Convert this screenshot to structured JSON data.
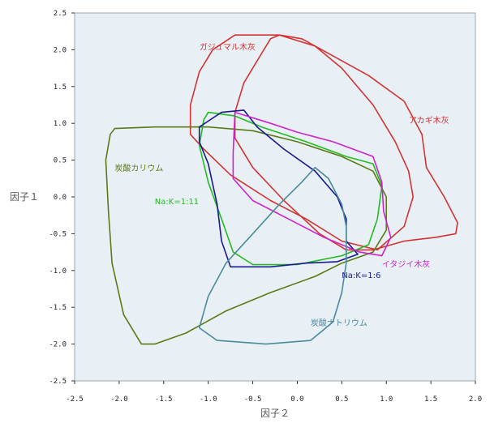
{
  "chart_data": {
    "type": "line",
    "xlabel": "因子２",
    "ylabel": "因子１",
    "xlim": [
      -2.5,
      2.0
    ],
    "ylim": [
      -2.5,
      2.5
    ],
    "x_ticks": [
      "-2.5",
      "-2.0",
      "-1.5",
      "-1.0",
      "-0.5",
      "0.0",
      "0.5",
      "1.0",
      "1.5",
      "2.0"
    ],
    "y_ticks": [
      "2.5",
      "2.0",
      "1.5",
      "1.0",
      "0.5",
      "0.0",
      "-0.5",
      "-1.0",
      "-1.5",
      "-2.0",
      "-2.5"
    ],
    "grid": false,
    "plot_background": "#e8f0f6",
    "series": [
      {
        "name": "ガジュマル木灰",
        "color": "#d23232",
        "points": [
          [
            -0.7,
            2.2
          ],
          [
            -0.2,
            2.2
          ],
          [
            0.2,
            2.05
          ],
          [
            0.5,
            1.75
          ],
          [
            0.85,
            1.25
          ],
          [
            1.1,
            0.75
          ],
          [
            1.25,
            0.35
          ],
          [
            1.3,
            0.0
          ],
          [
            1.2,
            -0.4
          ],
          [
            0.9,
            -0.72
          ],
          [
            0.5,
            -0.6
          ],
          [
            0.1,
            -0.3
          ],
          [
            -0.3,
            -0.05
          ],
          [
            -0.75,
            0.3
          ],
          [
            -1.05,
            0.65
          ],
          [
            -1.2,
            0.85
          ],
          [
            -1.2,
            1.25
          ],
          [
            -1.1,
            1.7
          ],
          [
            -0.95,
            2.0
          ],
          [
            -0.7,
            2.2
          ]
        ]
      },
      {
        "name": "アカギ木灰",
        "color": "#d23232",
        "points": [
          [
            -0.2,
            2.2
          ],
          [
            0.05,
            2.15
          ],
          [
            0.35,
            1.95
          ],
          [
            0.8,
            1.65
          ],
          [
            1.2,
            1.3
          ],
          [
            1.4,
            0.85
          ],
          [
            1.45,
            0.4
          ],
          [
            1.65,
            0.0
          ],
          [
            1.8,
            -0.35
          ],
          [
            1.78,
            -0.5
          ],
          [
            1.55,
            -0.55
          ],
          [
            1.2,
            -0.6
          ],
          [
            0.85,
            -0.72
          ],
          [
            0.55,
            -0.72
          ],
          [
            0.25,
            -0.5
          ],
          [
            -0.15,
            -0.05
          ],
          [
            -0.5,
            0.4
          ],
          [
            -0.7,
            0.8
          ],
          [
            -0.7,
            1.15
          ],
          [
            -0.6,
            1.55
          ],
          [
            -0.45,
            1.85
          ],
          [
            -0.3,
            2.15
          ],
          [
            -0.2,
            2.2
          ]
        ]
      },
      {
        "name": "炭酸カリウム",
        "color": "#5a7a14",
        "points": [
          [
            -2.05,
            0.93
          ],
          [
            -1.6,
            0.95
          ],
          [
            -1.0,
            0.95
          ],
          [
            -0.5,
            0.9
          ],
          [
            0.0,
            0.75
          ],
          [
            0.5,
            0.55
          ],
          [
            0.85,
            0.35
          ],
          [
            1.0,
            0.0
          ],
          [
            1.0,
            -0.45
          ],
          [
            0.85,
            -0.75
          ],
          [
            0.5,
            -0.9
          ],
          [
            0.2,
            -1.08
          ],
          [
            -0.3,
            -1.3
          ],
          [
            -0.8,
            -1.55
          ],
          [
            -1.25,
            -1.85
          ],
          [
            -1.6,
            -2.0
          ],
          [
            -1.75,
            -2.0
          ],
          [
            -1.95,
            -1.6
          ],
          [
            -2.08,
            -0.9
          ],
          [
            -2.12,
            -0.2
          ],
          [
            -2.15,
            0.5
          ],
          [
            -2.1,
            0.85
          ],
          [
            -2.05,
            0.93
          ]
        ]
      },
      {
        "name": "Na:K=1:11",
        "color": "#22bb22",
        "points": [
          [
            -1.0,
            1.15
          ],
          [
            -0.7,
            1.1
          ],
          [
            -0.4,
            0.95
          ],
          [
            0.1,
            0.75
          ],
          [
            0.55,
            0.55
          ],
          [
            0.85,
            0.45
          ],
          [
            0.95,
            0.15
          ],
          [
            0.9,
            -0.3
          ],
          [
            0.8,
            -0.65
          ],
          [
            0.5,
            -0.8
          ],
          [
            0.0,
            -0.92
          ],
          [
            -0.5,
            -0.92
          ],
          [
            -0.72,
            -0.75
          ],
          [
            -0.85,
            -0.3
          ],
          [
            -1.0,
            0.2
          ],
          [
            -1.1,
            0.7
          ],
          [
            -1.05,
            1.05
          ],
          [
            -1.0,
            1.15
          ]
        ]
      },
      {
        "name": "Na:K=1:6",
        "color": "#1a1a8c",
        "points": [
          [
            -1.1,
            0.95
          ],
          [
            -0.85,
            1.15
          ],
          [
            -0.6,
            1.18
          ],
          [
            -0.45,
            0.95
          ],
          [
            -0.15,
            0.65
          ],
          [
            0.2,
            0.35
          ],
          [
            0.45,
            0.0
          ],
          [
            0.55,
            -0.3
          ],
          [
            0.55,
            -0.6
          ],
          [
            0.68,
            -0.78
          ],
          [
            0.45,
            -0.88
          ],
          [
            0.1,
            -0.9
          ],
          [
            -0.3,
            -0.95
          ],
          [
            -0.75,
            -0.95
          ],
          [
            -0.85,
            -0.6
          ],
          [
            -0.9,
            -0.1
          ],
          [
            -1.0,
            0.45
          ],
          [
            -1.1,
            0.75
          ],
          [
            -1.1,
            0.95
          ]
        ]
      },
      {
        "name": "イタジイ木灰",
        "color": "#cc22cc",
        "points": [
          [
            -0.7,
            1.15
          ],
          [
            -0.3,
            1.0
          ],
          [
            0.0,
            0.88
          ],
          [
            0.4,
            0.75
          ],
          [
            0.85,
            0.55
          ],
          [
            0.95,
            0.2
          ],
          [
            0.97,
            -0.2
          ],
          [
            1.05,
            -0.55
          ],
          [
            0.95,
            -0.8
          ],
          [
            0.7,
            -0.75
          ],
          [
            0.3,
            -0.55
          ],
          [
            -0.1,
            -0.3
          ],
          [
            -0.5,
            -0.05
          ],
          [
            -0.72,
            0.25
          ],
          [
            -0.72,
            0.6
          ],
          [
            -0.7,
            1.15
          ]
        ]
      },
      {
        "name": "炭酸ナトリウム",
        "color": "#4a8a9a",
        "points": [
          [
            0.2,
            0.4
          ],
          [
            0.35,
            0.25
          ],
          [
            0.5,
            -0.1
          ],
          [
            0.55,
            -0.4
          ],
          [
            0.55,
            -0.9
          ],
          [
            0.5,
            -1.3
          ],
          [
            0.4,
            -1.7
          ],
          [
            0.15,
            -1.95
          ],
          [
            -0.35,
            -2.0
          ],
          [
            -0.9,
            -1.95
          ],
          [
            -1.1,
            -1.78
          ],
          [
            -1.0,
            -1.35
          ],
          [
            -0.8,
            -0.9
          ],
          [
            -0.5,
            -0.5
          ],
          [
            -0.2,
            -0.1
          ],
          [
            0.05,
            0.2
          ],
          [
            0.2,
            0.4
          ]
        ]
      }
    ],
    "annotations": [
      {
        "text": "ガジュマル木灰",
        "x": -1.1,
        "y": 2.0,
        "color": "#d23232"
      },
      {
        "text": "アカギ木灰",
        "x": 1.25,
        "y": 1.0,
        "color": "#d23232"
      },
      {
        "text": "炭酸カリウム",
        "x": -2.05,
        "y": 0.35,
        "color": "#5a7a14"
      },
      {
        "text": "Na:K=1:11",
        "x": -1.6,
        "y": -0.1,
        "color": "#22bb22"
      },
      {
        "text": "イタジイ木灰",
        "x": 0.95,
        "y": -0.95,
        "color": "#cc22cc"
      },
      {
        "text": "Na:K=1:6",
        "x": 0.5,
        "y": -1.1,
        "color": "#1a1a8c"
      },
      {
        "text": "炭酸ナトリウム",
        "x": 0.15,
        "y": -1.75,
        "color": "#4a8a9a"
      }
    ]
  }
}
